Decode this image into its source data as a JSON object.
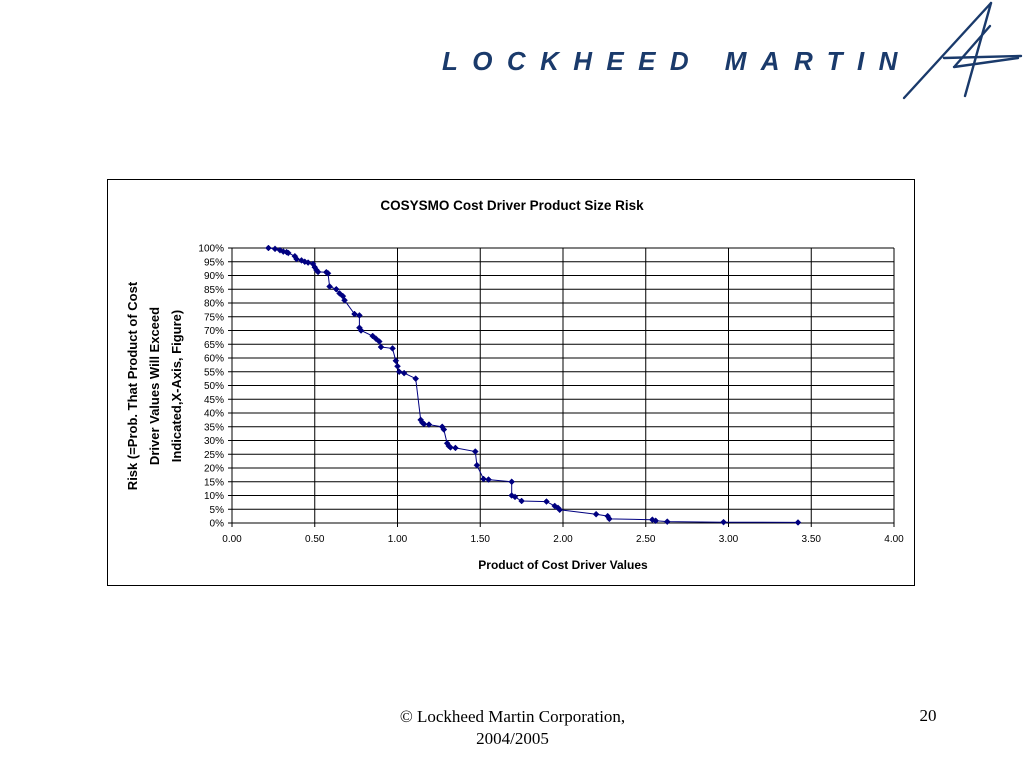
{
  "header": {
    "logo_text": "LOCKHEED MARTIN",
    "logo_icon": "lockheed-martin-star-icon",
    "brand_color": "#1a3a6b"
  },
  "footer": {
    "copyright_line1": "© Lockheed Martin Corporation,",
    "copyright_line2": "2004/2005",
    "page_number": "20"
  },
  "chart_data": {
    "type": "line",
    "title": "COSYSMO Cost Driver Product Size Risk",
    "xlabel": "Product of Cost Driver Values",
    "ylabel_lines": [
      "Risk (=Prob. That Product of Cost",
      "Driver Values Will Exceed",
      "Indicated,X-Axis, Figure)"
    ],
    "xlim": [
      0,
      4
    ],
    "ylim": [
      0,
      100
    ],
    "x_ticks": [
      "0.00",
      "0.50",
      "1.00",
      "1.50",
      "2.00",
      "2.50",
      "3.00",
      "3.50",
      "4.00"
    ],
    "y_ticks": [
      "0%",
      "5%",
      "10%",
      "15%",
      "20%",
      "25%",
      "30%",
      "35%",
      "40%",
      "45%",
      "50%",
      "55%",
      "60%",
      "65%",
      "70%",
      "75%",
      "80%",
      "85%",
      "90%",
      "95%",
      "100%"
    ],
    "grid": true,
    "series_color": "#000080",
    "series": [
      {
        "x": [
          0.22,
          0.26,
          0.29,
          0.31,
          0.33,
          0.34,
          0.38,
          0.39,
          0.42,
          0.44,
          0.46,
          0.49,
          0.5,
          0.51,
          0.52,
          0.57,
          0.58,
          0.59,
          0.63,
          0.65,
          0.67,
          0.68,
          0.74,
          0.77,
          0.77,
          0.78,
          0.85,
          0.87,
          0.89,
          0.9,
          0.97,
          0.99,
          1.0,
          1.01,
          1.04,
          1.11,
          1.14,
          1.15,
          1.16,
          1.19,
          1.27,
          1.28,
          1.3,
          1.31,
          1.32,
          1.35,
          1.47,
          1.48,
          1.52,
          1.55,
          1.69,
          1.69,
          1.71,
          1.75,
          1.9,
          1.95,
          1.97,
          1.98,
          2.2,
          2.27,
          2.28,
          2.54,
          2.56,
          2.63,
          2.97,
          3.42
        ],
        "y": [
          100,
          99.7,
          99.2,
          98.7,
          98.5,
          98.2,
          97,
          96,
          95.5,
          95,
          94.7,
          94.2,
          93,
          92,
          91.3,
          91.2,
          90.8,
          86,
          85,
          83.5,
          82.5,
          81,
          76,
          75.5,
          71,
          70,
          68,
          67,
          66,
          64,
          63.5,
          59,
          57,
          55,
          54.5,
          52.5,
          37.5,
          36.5,
          36,
          35.8,
          35,
          34,
          29,
          28,
          27.5,
          27.3,
          26,
          21,
          16,
          15.8,
          15,
          10,
          9.5,
          8,
          7.8,
          6.2,
          5.5,
          4.8,
          3.2,
          2.5,
          1.5,
          1.2,
          0.8,
          0.5,
          0.3,
          0.2
        ]
      }
    ]
  }
}
